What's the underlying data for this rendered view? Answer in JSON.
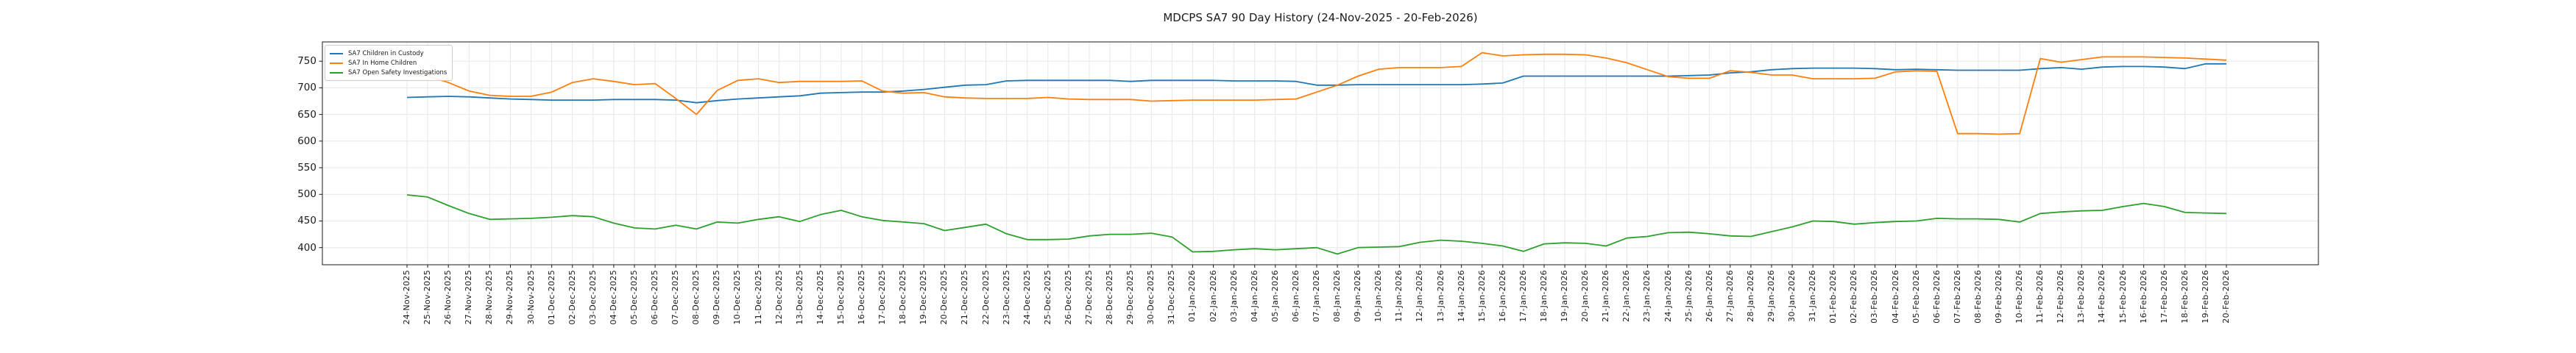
{
  "figure": {
    "title": "MDCPS SA7 90 Day History (24-Nov-2025 - 20-Feb-2026)"
  },
  "chart_data": {
    "type": "line",
    "title": "MDCPS SA7 90 Day History (24-Nov-2025 - 20-Feb-2026)",
    "xlabel": "",
    "ylabel": "",
    "grid": true,
    "legend_position": "upper left",
    "ylim": [
      368,
      786
    ],
    "yticks": [
      400,
      450,
      500,
      550,
      600,
      650,
      700,
      750
    ],
    "x": [
      "24-Nov-2025",
      "25-Nov-2025",
      "26-Nov-2025",
      "27-Nov-2025",
      "28-Nov-2025",
      "29-Nov-2025",
      "30-Nov-2025",
      "01-Dec-2025",
      "02-Dec-2025",
      "03-Dec-2025",
      "04-Dec-2025",
      "05-Dec-2025",
      "06-Dec-2025",
      "07-Dec-2025",
      "08-Dec-2025",
      "09-Dec-2025",
      "10-Dec-2025",
      "11-Dec-2025",
      "12-Dec-2025",
      "13-Dec-2025",
      "14-Dec-2025",
      "15-Dec-2025",
      "16-Dec-2025",
      "17-Dec-2025",
      "18-Dec-2025",
      "19-Dec-2025",
      "20-Dec-2025",
      "21-Dec-2025",
      "22-Dec-2025",
      "23-Dec-2025",
      "24-Dec-2025",
      "25-Dec-2025",
      "26-Dec-2025",
      "27-Dec-2025",
      "28-Dec-2025",
      "29-Dec-2025",
      "30-Dec-2025",
      "31-Dec-2025",
      "01-Jan-2026",
      "02-Jan-2026",
      "03-Jan-2026",
      "04-Jan-2026",
      "05-Jan-2026",
      "06-Jan-2026",
      "07-Jan-2026",
      "08-Jan-2026",
      "09-Jan-2026",
      "10-Jan-2026",
      "11-Jan-2026",
      "12-Jan-2026",
      "13-Jan-2026",
      "14-Jan-2026",
      "15-Jan-2026",
      "16-Jan-2026",
      "17-Jan-2026",
      "18-Jan-2026",
      "19-Jan-2026",
      "20-Jan-2026",
      "21-Jan-2026",
      "22-Jan-2026",
      "23-Jan-2026",
      "24-Jan-2026",
      "25-Jan-2026",
      "26-Jan-2026",
      "27-Jan-2026",
      "28-Jan-2026",
      "29-Jan-2026",
      "30-Jan-2026",
      "31-Jan-2026",
      "01-Feb-2026",
      "02-Feb-2026",
      "03-Feb-2026",
      "04-Feb-2026",
      "05-Feb-2026",
      "06-Feb-2026",
      "07-Feb-2026",
      "08-Feb-2026",
      "09-Feb-2026",
      "10-Feb-2026",
      "11-Feb-2026",
      "12-Feb-2026",
      "13-Feb-2026",
      "14-Feb-2026",
      "15-Feb-2026",
      "16-Feb-2026",
      "17-Feb-2026",
      "18-Feb-2026",
      "19-Feb-2026",
      "20-Feb-2026"
    ],
    "series": [
      {
        "name": "SA7 Children in Custody",
        "color": "#1f77b4",
        "values": [
          682,
          683,
          684,
          683,
          681,
          679,
          678,
          677,
          677,
          677,
          678,
          678,
          678,
          677,
          672,
          676,
          679,
          681,
          683,
          685,
          690,
          691,
          692,
          692,
          694,
          697,
          701,
          705,
          706,
          713,
          714,
          714,
          714,
          714,
          714,
          712,
          714,
          714,
          714,
          714,
          713,
          713,
          713,
          712,
          705,
          705,
          706,
          706,
          706,
          706,
          706,
          706,
          707,
          709,
          722,
          722,
          722,
          722,
          722,
          722,
          722,
          722,
          723,
          724,
          728,
          730,
          734,
          736,
          737,
          737,
          737,
          736,
          734,
          735,
          734,
          733,
          733,
          733,
          733,
          736,
          738,
          735,
          739,
          740,
          740,
          739,
          736,
          745,
          745
        ]
      },
      {
        "name": "SA7 In Home Children",
        "color": "#ff7f0e",
        "values": [
          722,
          722,
          710,
          694,
          686,
          684,
          684,
          692,
          710,
          717,
          712,
          706,
          708,
          680,
          650,
          695,
          714,
          717,
          710,
          712,
          712,
          712,
          713,
          694,
          690,
          691,
          683,
          681,
          680,
          680,
          680,
          682,
          679,
          678,
          678,
          678,
          675,
          676,
          677,
          677,
          677,
          677,
          678,
          679,
          692,
          705,
          722,
          735,
          738,
          738,
          738,
          740,
          766,
          760,
          762,
          763,
          763,
          762,
          756,
          747,
          734,
          721,
          718,
          718,
          732,
          729,
          724,
          724,
          717,
          717,
          717,
          718,
          730,
          732,
          731,
          614,
          614,
          613,
          614,
          755,
          748,
          753,
          758,
          758,
          758,
          757,
          756,
          754,
          752
        ]
      },
      {
        "name": "SA7 Open Safety Investigations",
        "color": "#2ca02c",
        "values": [
          499,
          495,
          479,
          464,
          453,
          454,
          455,
          457,
          460,
          458,
          446,
          437,
          435,
          442,
          435,
          448,
          446,
          453,
          458,
          449,
          462,
          470,
          458,
          451,
          448,
          445,
          432,
          438,
          444,
          426,
          415,
          415,
          416,
          422,
          425,
          425,
          427,
          420,
          392,
          393,
          396,
          398,
          396,
          398,
          400,
          388,
          400,
          401,
          402,
          410,
          414,
          412,
          408,
          403,
          393,
          407,
          409,
          408,
          403,
          418,
          421,
          428,
          429,
          426,
          422,
          421,
          430,
          439,
          450,
          449,
          444,
          447,
          449,
          450,
          455,
          454,
          454,
          453,
          448,
          464,
          467,
          469,
          470,
          477,
          483,
          477,
          466,
          465,
          464
        ]
      }
    ]
  }
}
